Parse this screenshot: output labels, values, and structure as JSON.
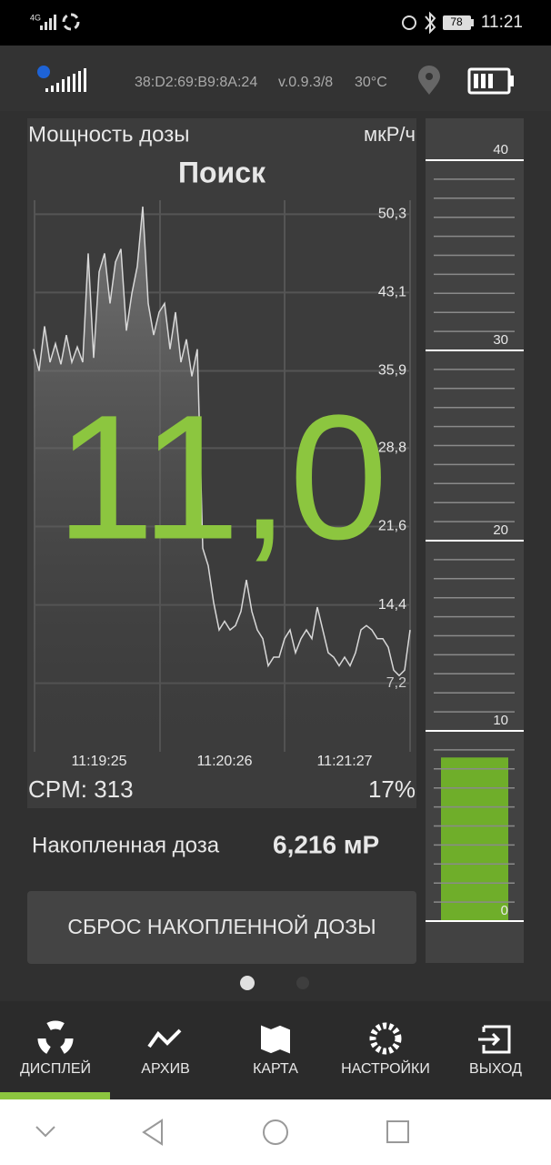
{
  "status_bar": {
    "network": "4G",
    "battery": "78",
    "time": "11:21"
  },
  "header": {
    "device_id": "38:D2:69:B9:8A:24",
    "version": "v.0.9.3/8",
    "temperature": "30°C"
  },
  "panel": {
    "title": "Мощность дозы",
    "unit": "мкР/ч",
    "mode": "Поиск",
    "reading": "11,0",
    "cpm": "CPM: 313",
    "percent": "17%"
  },
  "graph": {
    "type": "line",
    "categories": [
      null,
      null,
      null,
      null,
      null,
      null,
      null,
      null,
      null,
      null,
      null,
      null,
      "11:19:25",
      null,
      null,
      null,
      null,
      null,
      null,
      null,
      null,
      null,
      null,
      null,
      null,
      null,
      null,
      null,
      null,
      null,
      null,
      null,
      null,
      null,
      null,
      "11:20:26",
      null,
      null,
      null,
      null,
      null,
      null,
      null,
      null,
      null,
      null,
      null,
      null,
      null,
      null,
      null,
      null,
      null,
      null,
      null,
      null,
      null,
      "11:21:27",
      null,
      null,
      null,
      null,
      null,
      null,
      null,
      null,
      null,
      null,
      null,
      null
    ],
    "series": [
      {
        "color": "#d8d8d8",
        "values": [
          37.9,
          35.9,
          40,
          36.7,
          38.4,
          36.5,
          39.2,
          36.7,
          38.1,
          36.7,
          46.7,
          37.1,
          45,
          46.7,
          42.1,
          45.9,
          47.1,
          39.6,
          43,
          45.5,
          51,
          42.1,
          39.2,
          41.3,
          42.1,
          37.9,
          41.3,
          36.7,
          38.8,
          35.4,
          37.9,
          19.6,
          18,
          14.6,
          12.1,
          12.9,
          12.1,
          12.5,
          13.8,
          16.7,
          13.8,
          12.1,
          11.3,
          8.8,
          9.6,
          9.6,
          11.3,
          12.1,
          10,
          11.3,
          12.1,
          11.3,
          14.2,
          12.1,
          10,
          9.6,
          8.8,
          9.6,
          8.8,
          10,
          12.1,
          12.5,
          12.1,
          11.3,
          11.3,
          10.5,
          8.4,
          7.9,
          8.4,
          12.1
        ]
      }
    ],
    "ylim": [
      0.9,
      51.5
    ],
    "yticks": [
      {
        "value": 50.3,
        "label": "50,3"
      },
      {
        "value": 43.1,
        "label": "43,1"
      },
      {
        "value": 35.9,
        "label": "35,9"
      },
      {
        "value": 28.8,
        "label": "28,8"
      },
      {
        "value": 21.6,
        "label": "21,6"
      },
      {
        "value": 14.4,
        "label": "14,4"
      },
      {
        "value": 7.2,
        "label": "7,2"
      }
    ],
    "grid": true
  },
  "gauge": {
    "type": "bar",
    "value": 8.6,
    "color": "#6fae2a",
    "ylim": [
      0,
      40
    ],
    "yticks": [
      40,
      30,
      20,
      10,
      0
    ]
  },
  "dose": {
    "label": "Накопленная доза",
    "value": "6,216 мР"
  },
  "reset_button": "СБРОС НАКОПЛЕННОЙ ДОЗЫ",
  "nav": [
    "ДИСПЛЕЙ",
    "АРХИВ",
    "КАРТА",
    "НАСТРОЙКИ",
    "ВЫХОД"
  ]
}
